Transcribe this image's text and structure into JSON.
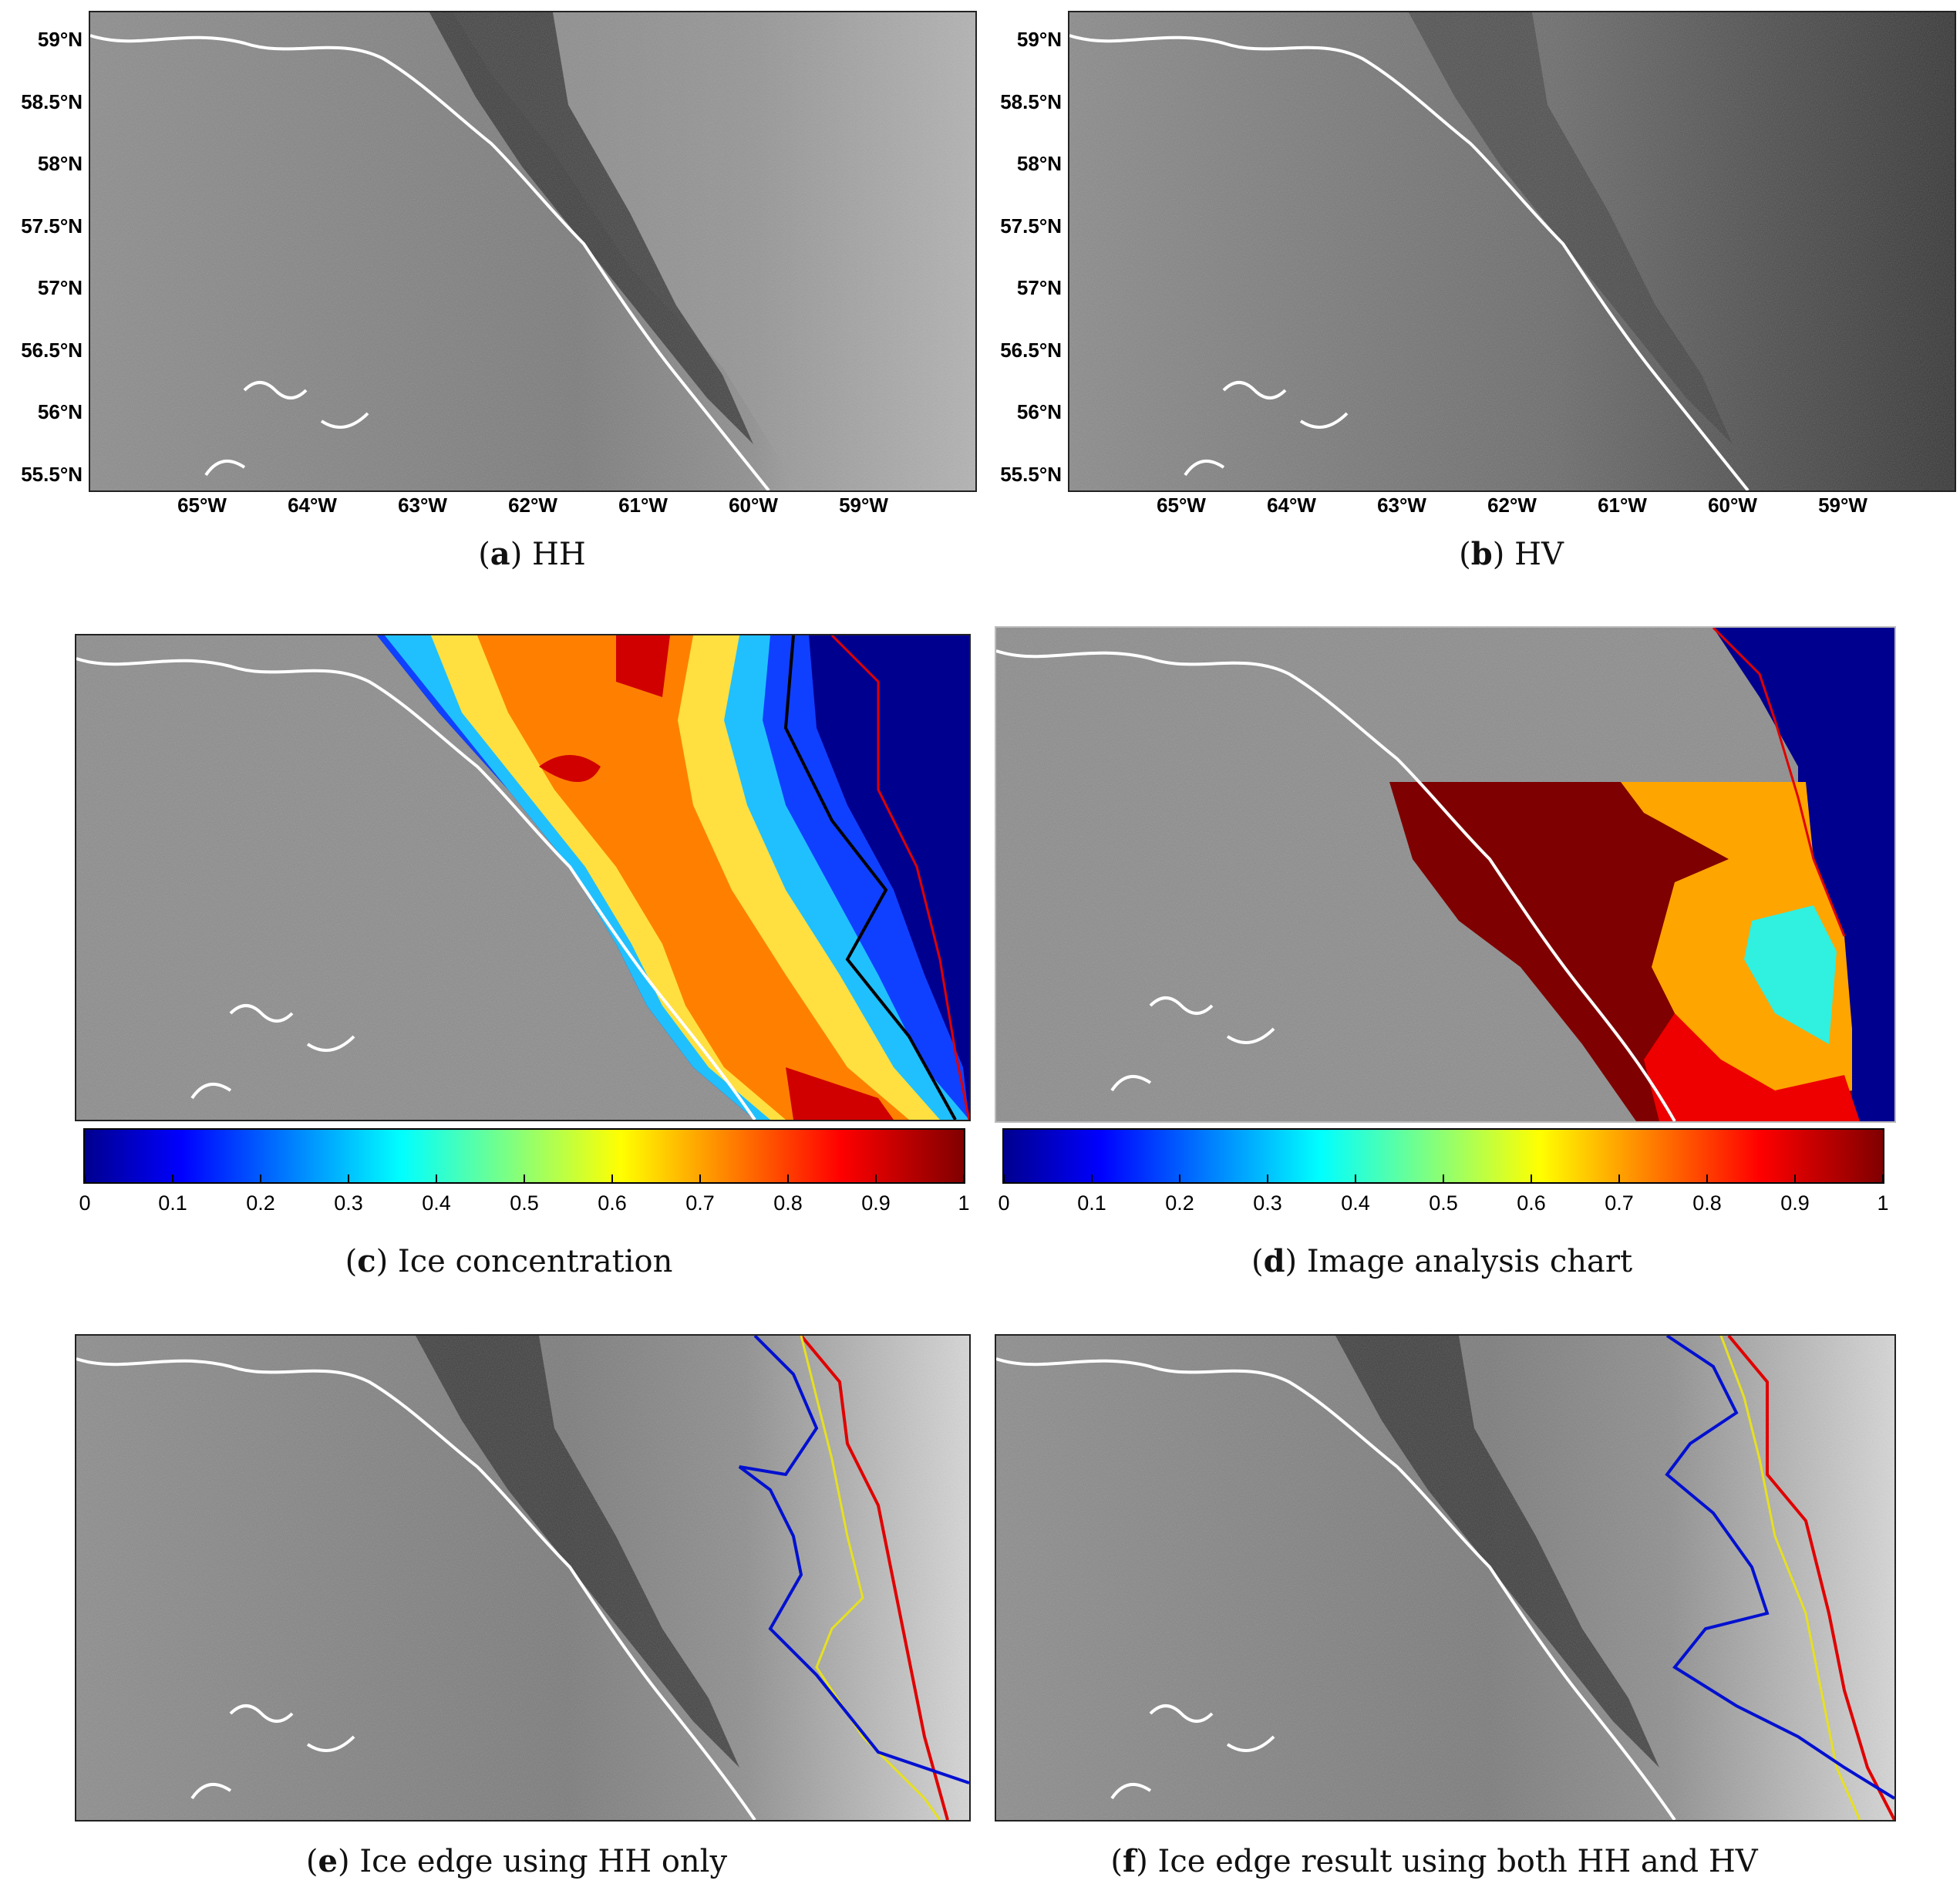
{
  "panels": [
    {
      "letter": "a",
      "text": "HH"
    },
    {
      "letter": "b",
      "text": "HV"
    },
    {
      "letter": "c",
      "text": "Ice concentration"
    },
    {
      "letter": "d",
      "text": "Image analysis chart"
    },
    {
      "letter": "e",
      "text": "Ice edge using HH only"
    },
    {
      "letter": "f",
      "text": "Ice edge result using both HH and HV"
    }
  ],
  "lat_ticks": [
    "59°N",
    "58.5°N",
    "58°N",
    "57.5°N",
    "57°N",
    "56.5°N",
    "56°N",
    "55.5°N"
  ],
  "lon_ticks": [
    "65°W",
    "64°W",
    "63°W",
    "62°W",
    "61°W",
    "60°W",
    "59°W"
  ],
  "colorbar_ticks": [
    "0",
    "0.1",
    "0.2",
    "0.3",
    "0.4",
    "0.5",
    "0.6",
    "0.7",
    "0.8",
    "0.9",
    "1"
  ],
  "colors": {
    "coastline": "#ffffff",
    "edge_red": "#e00000",
    "edge_blue": "#0010d0",
    "edge_yellow": "#e6e020",
    "contour_black": "#000000",
    "chart_dark_red": "#7f0000",
    "chart_orange": "#ffa500",
    "chart_cyan": "#30f0e0",
    "chart_red": "#ee0000",
    "chart_navy": "#00008f"
  }
}
